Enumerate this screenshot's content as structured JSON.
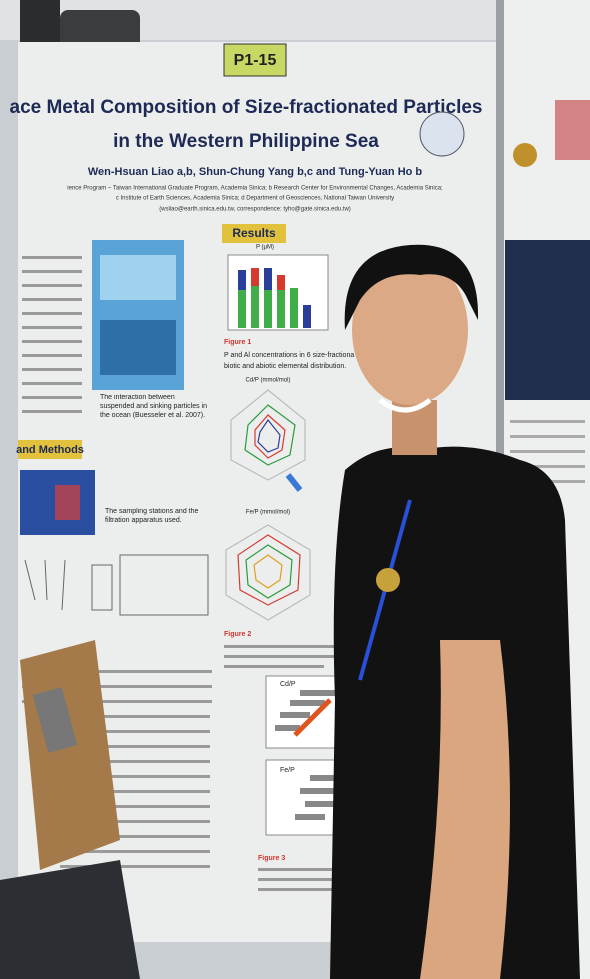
{
  "poster": {
    "label": "P1-15",
    "title_lines": [
      "ace Metal Composition of Size-fractionated Particles",
      "in the Western Philippine Sea"
    ],
    "authors": "Wen-Hsuan Liao a,b, Shun-Chung Yang b,c and Tung-Yuan Ho b",
    "affiliations": [
      "ience Program – Taiwan International Graduate Program, Academia Sinica; b Research Center for Environmental Changes, Academia Sinica;",
      "c Institute of Earth Sciences, Academia Sinica; d Department of Geosciences, National Taiwan University",
      "(wsliao@earth.sinica.edu.tw, correspondence: tyho@gate.sinica.edu.tw)"
    ],
    "sections": [
      "Results",
      "and Methods"
    ],
    "captions": [
      "The interaction between suspended and sinking particles in the ocean (Buesseler et al. 2007).",
      "The sampling stations and the filtration apparatus used.",
      "Figure 1",
      "P and Al concentrations in 6 size-fractiona",
      "biotic and abiotic elemental distribution.",
      "Figure 2",
      "Figure 3"
    ],
    "chart_labels": [
      "P (μM)",
      "Cd/P (mmol/mol)",
      "Fe/P (mmol/mol)",
      "Cd/P",
      "Fe/P"
    ]
  }
}
